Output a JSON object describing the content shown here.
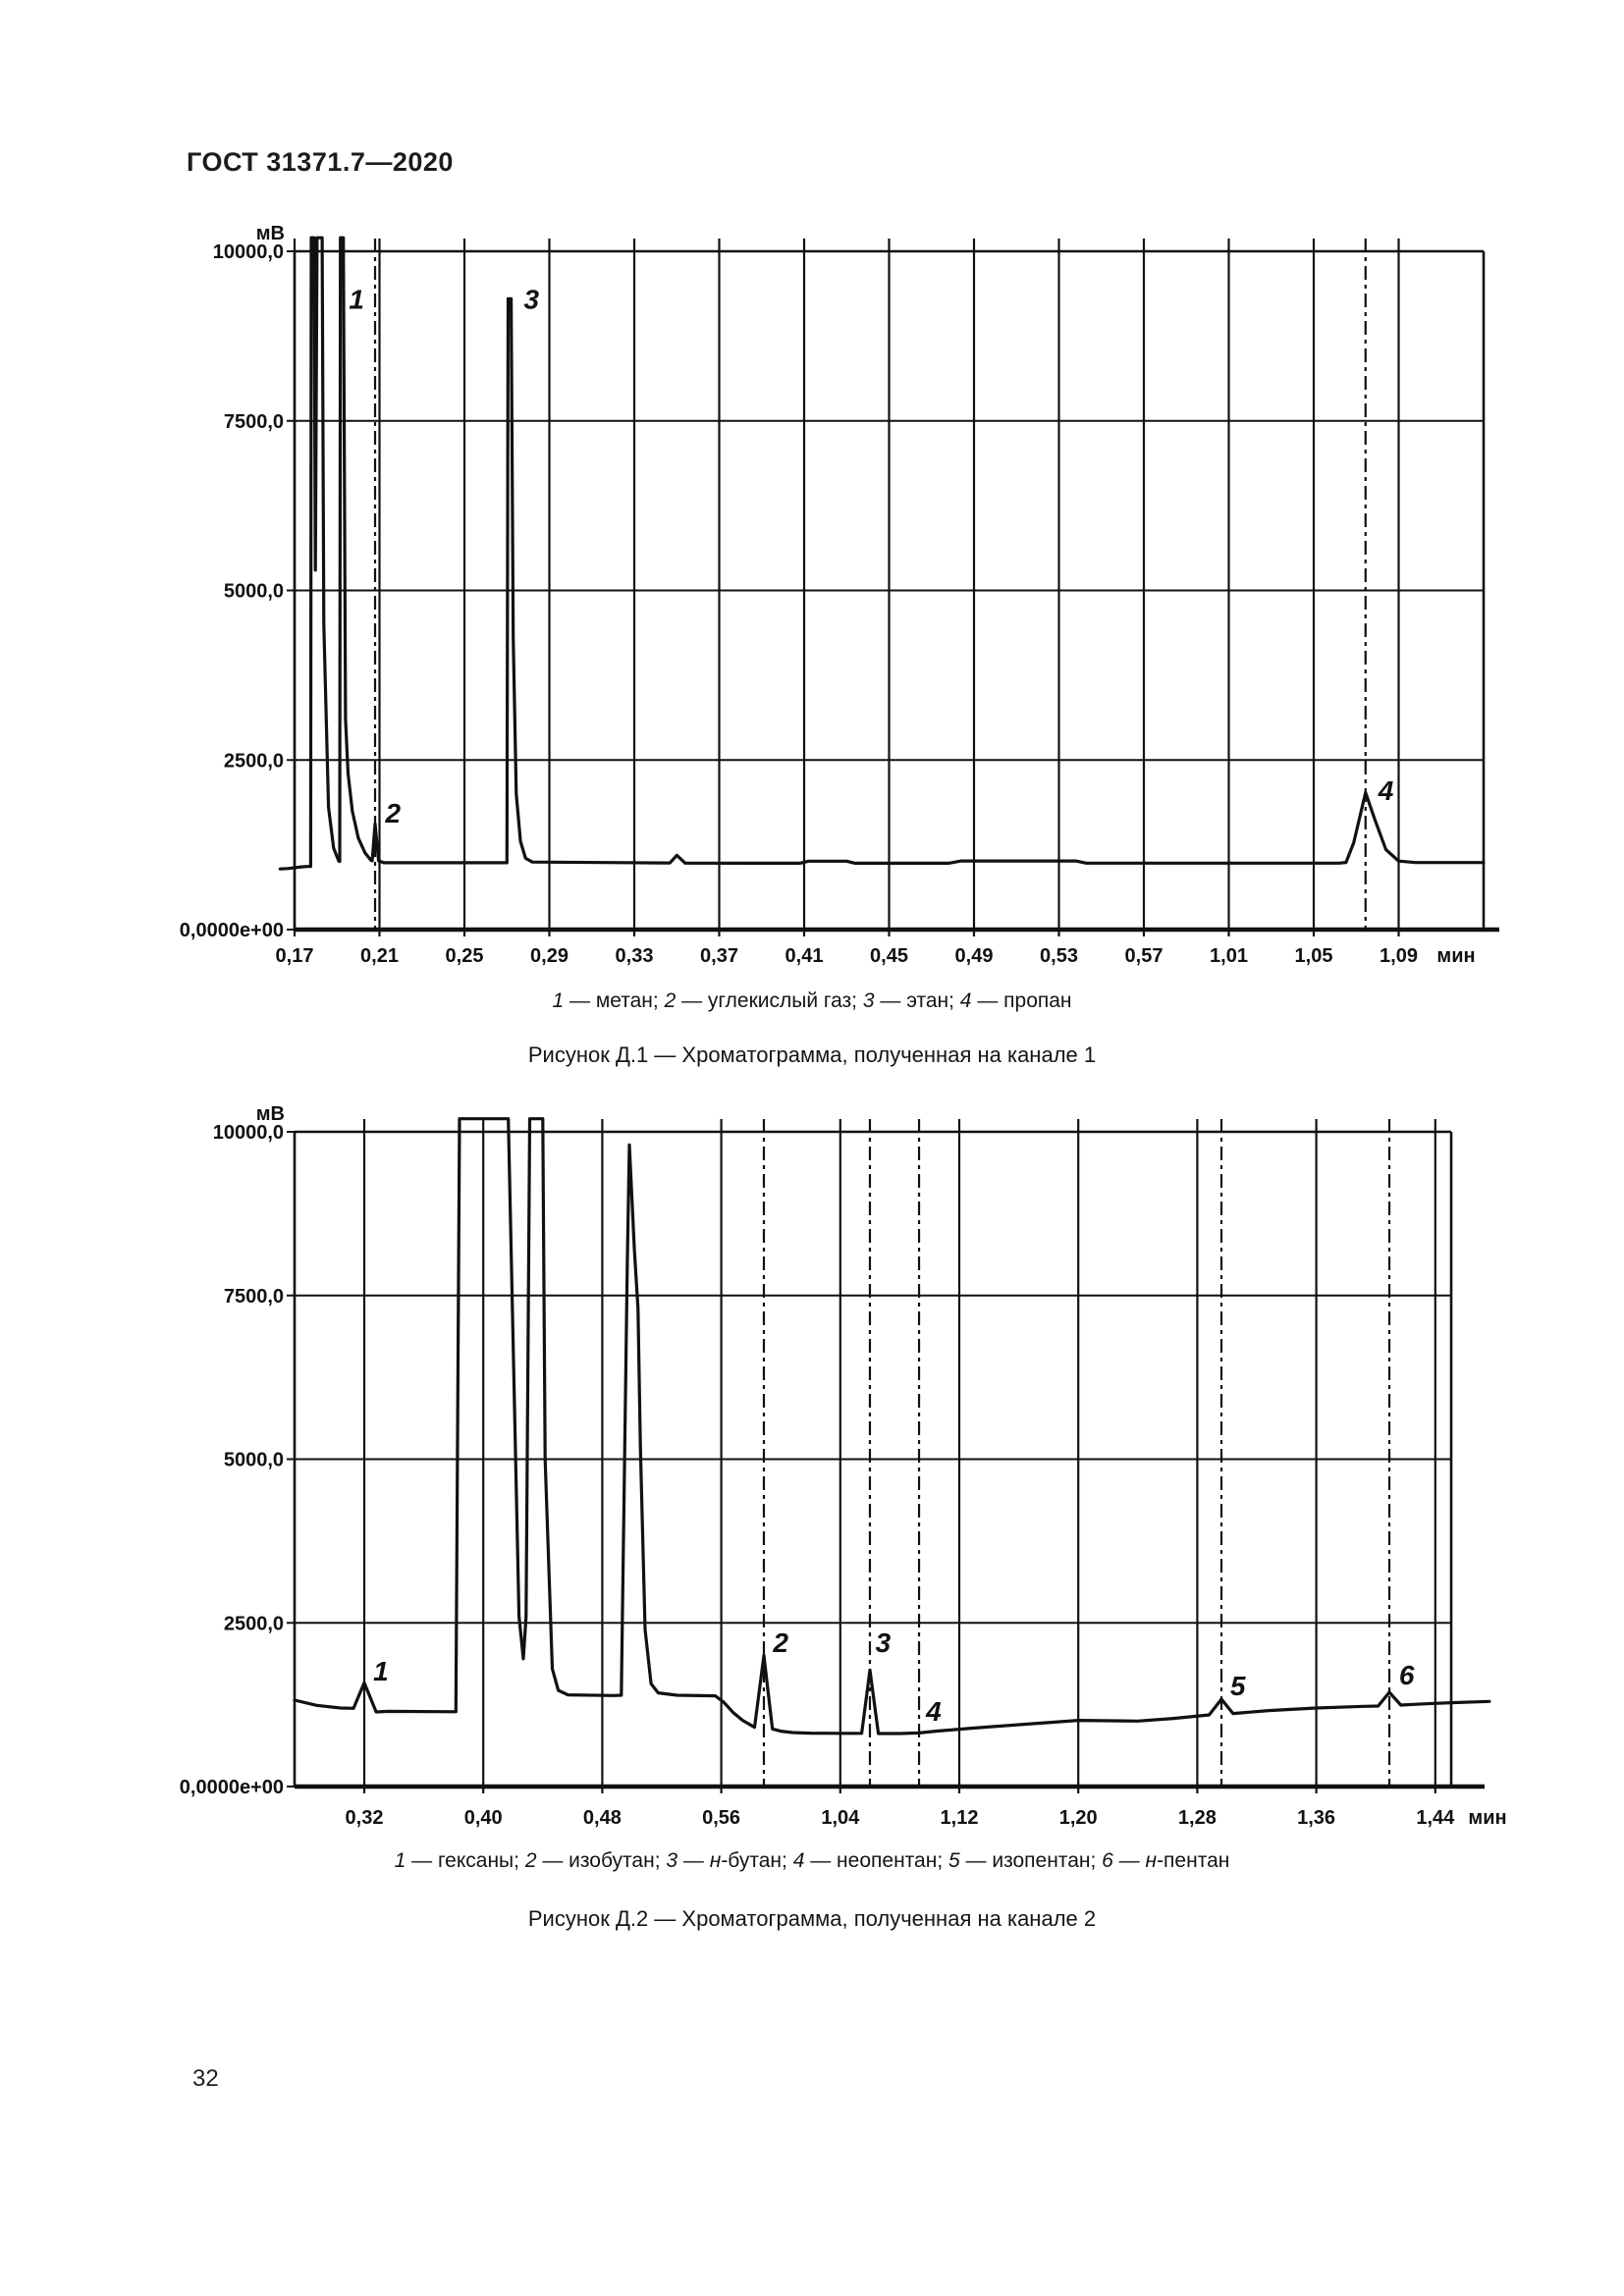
{
  "page": {
    "header": "ГОСТ 31371.7—2020",
    "page_number": "32"
  },
  "chart_data": [
    {
      "type": "line",
      "title": "Рисунок Д.1 — Хроматограмма, полученная на канале 1",
      "caption": "1 — метан; 2 — углекислый газ; 3 — этан; 4 — пропан",
      "caption_parts": [
        {
          "t": "1",
          "i": 1
        },
        {
          "t": " — метан; ",
          "i": 0
        },
        {
          "t": "2",
          "i": 1
        },
        {
          "t": " — углекислый газ; ",
          "i": 0
        },
        {
          "t": "3",
          "i": 1
        },
        {
          "t": " — этан; ",
          "i": 0
        },
        {
          "t": "4",
          "i": 1
        },
        {
          "t": " — пропан",
          "i": 0
        }
      ],
      "y_axis": {
        "unit": "мВ",
        "tick_labels": [
          "10000,0",
          "7500,0",
          "5000,0",
          "2500,0",
          "0,0000e+00"
        ],
        "tick_values": [
          10000,
          7500,
          5000,
          2500,
          0
        ],
        "range": [
          0,
          10000
        ]
      },
      "x_axis": {
        "unit": "мин",
        "tick_labels": [
          "0,17",
          "0,21",
          "0,25",
          "0,29",
          "0,33",
          "0,37",
          "0,41",
          "0,45",
          "0,49",
          "0,53",
          "0,57",
          "1,01",
          "1,05",
          "1,09"
        ],
        "tick_step_min": 0.04,
        "note": "axis printed with a break between 0,57 and 1,01"
      },
      "baseline_mV": 1000,
      "peaks": [
        {
          "label": "1",
          "name": "метан",
          "axis_u": 0.55,
          "height_mV": "off-scale >10000"
        },
        {
          "label": "2",
          "name": "углекислый газ",
          "axis_u": 0.948,
          "height_mV": 1560
        },
        {
          "label": "3",
          "name": "этан",
          "axis_u": 2.53,
          "height_mV": 9300
        },
        {
          "label": "4",
          "name": "пропан",
          "axis_u": 12.61,
          "height_mV": 2020
        }
      ],
      "unlabeled_features": [
        {
          "desc": "injection double spike, off-scale",
          "axis_u": [
            0.2,
            0.33
          ]
        },
        {
          "desc": "small bump",
          "axis_u": 4.5,
          "height_mV": 1095
        }
      ],
      "markers_axis_u": [
        0.948,
        12.61
      ],
      "peak_labels": [
        {
          "text": "1",
          "u": 0.73,
          "mv": 9150
        },
        {
          "text": "2",
          "u": 1.16,
          "mv": 1577
        },
        {
          "text": "3",
          "u": 2.79,
          "mv": 9150
        },
        {
          "text": "4",
          "u": 12.85,
          "mv": 1910
        }
      ],
      "curve_u_mV": [
        [
          -0.17,
          895
        ],
        [
          -0.08,
          900
        ],
        [
          0.08,
          925
        ],
        [
          0.15,
          930
        ],
        [
          0.19,
          930
        ],
        [
          0.197,
          10200
        ],
        [
          0.23,
          10200
        ],
        [
          0.245,
          5300
        ],
        [
          0.265,
          10200
        ],
        [
          0.325,
          10200
        ],
        [
          0.345,
          4500
        ],
        [
          0.4,
          1800
        ],
        [
          0.46,
          1200
        ],
        [
          0.52,
          1010
        ],
        [
          0.532,
          1005
        ],
        [
          0.54,
          10200
        ],
        [
          0.575,
          10200
        ],
        [
          0.6,
          3100
        ],
        [
          0.63,
          2300
        ],
        [
          0.68,
          1750
        ],
        [
          0.75,
          1350
        ],
        [
          0.83,
          1130
        ],
        [
          0.9,
          1020
        ],
        [
          0.915,
          1015
        ],
        [
          0.948,
          1560
        ],
        [
          0.99,
          1015
        ],
        [
          1.05,
          985
        ],
        [
          2.45,
          985
        ],
        [
          2.5,
          985
        ],
        [
          2.515,
          9300
        ],
        [
          2.55,
          9300
        ],
        [
          2.575,
          4300
        ],
        [
          2.61,
          2000
        ],
        [
          2.66,
          1300
        ],
        [
          2.72,
          1050
        ],
        [
          2.8,
          995
        ],
        [
          4.35,
          982
        ],
        [
          4.42,
          982
        ],
        [
          4.5,
          1095
        ],
        [
          4.6,
          980
        ],
        [
          5.95,
          978
        ],
        [
          6.05,
          1008
        ],
        [
          6.5,
          1008
        ],
        [
          6.6,
          978
        ],
        [
          7.7,
          978
        ],
        [
          7.85,
          1012
        ],
        [
          9.2,
          1012
        ],
        [
          9.32,
          980
        ],
        [
          12.3,
          980
        ],
        [
          12.38,
          990
        ],
        [
          12.47,
          1280
        ],
        [
          12.61,
          2020
        ],
        [
          12.72,
          1620
        ],
        [
          12.85,
          1180
        ],
        [
          13.0,
          1010
        ],
        [
          13.2,
          988
        ],
        [
          14.0,
          988
        ]
      ]
    },
    {
      "type": "line",
      "title": "Рисунок Д.2 — Хроматограмма, полученная на канале 2",
      "caption": "1 — гексаны; 2 — изобутан; 3 — н-бутан; 4 — неопентан; 5 — изопентан; 6 — н-пентан",
      "caption_parts": [
        {
          "t": "1",
          "i": 1
        },
        {
          "t": " — гексаны; ",
          "i": 0
        },
        {
          "t": "2",
          "i": 1
        },
        {
          "t": " — изобутан; ",
          "i": 0
        },
        {
          "t": "3",
          "i": 1
        },
        {
          "t": " — ",
          "i": 0
        },
        {
          "t": "н",
          "i": 1
        },
        {
          "t": "-бутан; ",
          "i": 0
        },
        {
          "t": "4",
          "i": 1
        },
        {
          "t": " — неопентан; ",
          "i": 0
        },
        {
          "t": "5",
          "i": 1
        },
        {
          "t": " — изопентан; ",
          "i": 0
        },
        {
          "t": "6",
          "i": 1
        },
        {
          "t": " — ",
          "i": 0
        },
        {
          "t": "н",
          "i": 1
        },
        {
          "t": "-пентан",
          "i": 0
        }
      ],
      "y_axis": {
        "unit": "мВ",
        "tick_labels": [
          "10000,0",
          "7500,0",
          "5000,0",
          "2500,0",
          "0,0000e+00"
        ],
        "tick_values": [
          10000,
          7500,
          5000,
          2500,
          0
        ],
        "range": [
          0,
          10000
        ]
      },
      "x_axis": {
        "unit": "мин",
        "tick_labels": [
          "0,32",
          "0,40",
          "0,48",
          "0,56",
          "1,04",
          "1,12",
          "1,20",
          "1,28",
          "1,36",
          "1,44"
        ],
        "tick_step_min": 0.08,
        "note": "axis printed with a break between 0,56 and 1,04"
      },
      "baseline_mV": 1200,
      "peaks": [
        {
          "label": "1",
          "name": "гексаны",
          "axis_u": 0.0,
          "height_mV": 1585
        },
        {
          "label": "2",
          "name": "изобутан",
          "axis_u": 3.358,
          "height_mV": 2000
        },
        {
          "label": "3",
          "name": "н-бутан",
          "axis_u": 4.249,
          "height_mV": 1780
        },
        {
          "label": "4",
          "name": "неопентан",
          "axis_u": 4.662,
          "height_mV": "no visible peak, marker only"
        },
        {
          "label": "5",
          "name": "изопентан",
          "axis_u": 7.203,
          "height_mV": 1335
        },
        {
          "label": "6",
          "name": "н-пентан",
          "axis_u": 8.614,
          "height_mV": 1440
        }
      ],
      "unlabeled_features": [
        {
          "desc": "off-scale peak cluster",
          "axis_u": [
            0.8,
            1.6
          ]
        },
        {
          "desc": "large peak",
          "axis_u": 2.228,
          "height_mV": 9800
        }
      ],
      "markers_axis_u": [
        3.358,
        4.249,
        4.662,
        7.203,
        8.614
      ],
      "peak_labels": [
        {
          "text": "1",
          "u": 0.14,
          "mv": 1619
        },
        {
          "text": "2",
          "u": 3.5,
          "mv": 2054
        },
        {
          "text": "3",
          "u": 4.36,
          "mv": 2054
        },
        {
          "text": "4",
          "u": 4.785,
          "mv": 1004
        },
        {
          "text": "5",
          "u": 7.34,
          "mv": 1394
        },
        {
          "text": "6",
          "u": 8.76,
          "mv": 1559
        }
      ],
      "curve_u_mV": [
        [
          -0.586,
          1320
        ],
        [
          -0.4,
          1240
        ],
        [
          -0.2,
          1200
        ],
        [
          -0.09,
          1195
        ],
        [
          0.0,
          1585
        ],
        [
          0.1,
          1140
        ],
        [
          0.2,
          1148
        ],
        [
          0.77,
          1142
        ],
        [
          0.8,
          10200
        ],
        [
          1.21,
          10200
        ],
        [
          1.3,
          2600
        ],
        [
          1.337,
          1950
        ],
        [
          1.36,
          2600
        ],
        [
          1.39,
          10200
        ],
        [
          1.5,
          10200
        ],
        [
          1.52,
          5000
        ],
        [
          1.58,
          1800
        ],
        [
          1.63,
          1470
        ],
        [
          1.71,
          1400
        ],
        [
          2.1,
          1390
        ],
        [
          2.16,
          1395
        ],
        [
          2.21,
          8000
        ],
        [
          2.228,
          9800
        ],
        [
          2.27,
          8200
        ],
        [
          2.3,
          7300
        ],
        [
          2.32,
          5200
        ],
        [
          2.36,
          2400
        ],
        [
          2.41,
          1570
        ],
        [
          2.47,
          1430
        ],
        [
          2.63,
          1395
        ],
        [
          2.95,
          1385
        ],
        [
          3.02,
          1290
        ],
        [
          3.1,
          1130
        ],
        [
          3.18,
          1010
        ],
        [
          3.28,
          905
        ],
        [
          3.358,
          2000
        ],
        [
          3.43,
          880
        ],
        [
          3.5,
          845
        ],
        [
          3.6,
          825
        ],
        [
          3.75,
          815
        ],
        [
          4.0,
          812
        ],
        [
          4.18,
          812
        ],
        [
          4.249,
          1780
        ],
        [
          4.32,
          810
        ],
        [
          4.5,
          810
        ],
        [
          4.662,
          818
        ],
        [
          4.8,
          845
        ],
        [
          5.1,
          890
        ],
        [
          5.5,
          945
        ],
        [
          6.0,
          1010
        ],
        [
          6.5,
          1000
        ],
        [
          6.8,
          1040
        ],
        [
          7.05,
          1085
        ],
        [
          7.1,
          1095
        ],
        [
          7.203,
          1335
        ],
        [
          7.3,
          1115
        ],
        [
          7.6,
          1160
        ],
        [
          8.0,
          1200
        ],
        [
          8.4,
          1225
        ],
        [
          8.52,
          1230
        ],
        [
          8.614,
          1440
        ],
        [
          8.71,
          1245
        ],
        [
          8.9,
          1262
        ],
        [
          9.13,
          1280
        ],
        [
          9.455,
          1300
        ]
      ]
    }
  ]
}
